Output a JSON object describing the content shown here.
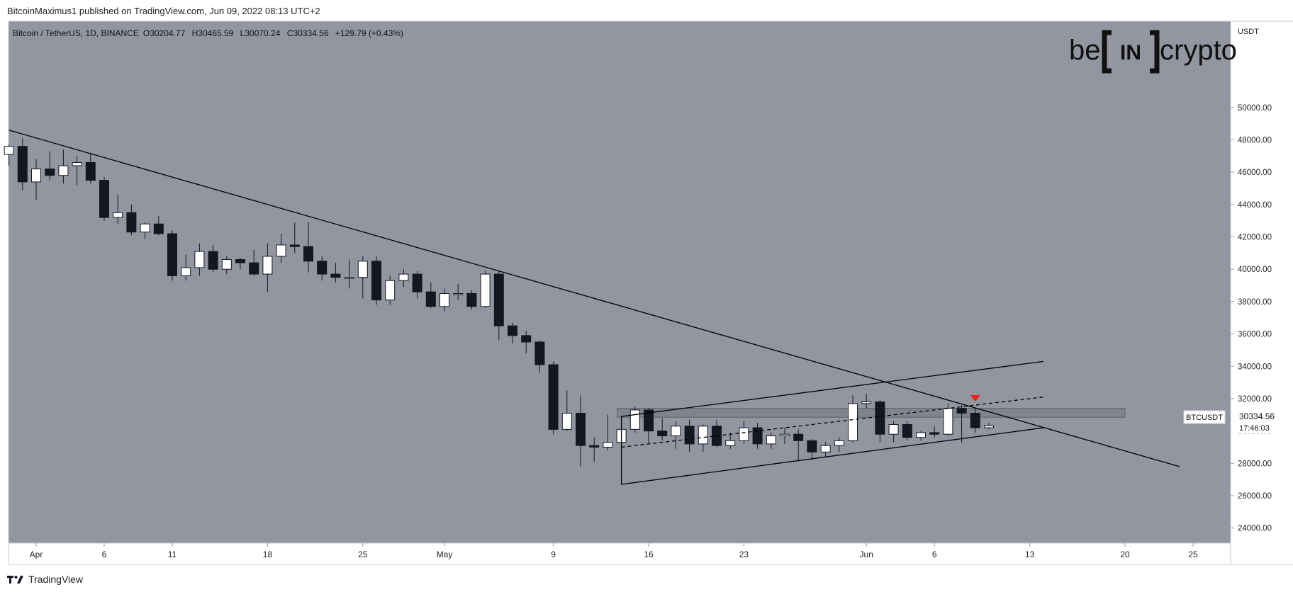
{
  "header": {
    "published_line": "BitcoinMaximus1 published on TradingView.com, Jun 09, 2022 08:13 UTC+2",
    "symbol_line": "Bitcoin / TetherUS, 1D, BINANCE",
    "ohlc": [
      {
        "key": "O",
        "value": "30204.77"
      },
      {
        "key": "H",
        "value": "30465.59"
      },
      {
        "key": "L",
        "value": "30070.24"
      },
      {
        "key": "C",
        "value": "30334.56"
      }
    ],
    "change": "+129.79 (+0.43%)"
  },
  "watermark": {
    "left": "be",
    "middle": "IN",
    "right": "crypto"
  },
  "price_tag": {
    "symbol": "BTCUSDT",
    "price": "30334.56",
    "countdown": "17:46:03"
  },
  "footer": {
    "brand": "TradingView"
  },
  "colors": {
    "plot_bg": "#9396a0",
    "bull": "#ffffff",
    "bear": "#131722",
    "line": "#000000",
    "zone": "#7e818b",
    "marker": "#e8231a"
  },
  "chart_data": {
    "type": "candlestick",
    "title": "",
    "xlabel": "",
    "ylabel": "USDT",
    "ylim": [
      23000,
      51500
    ],
    "x_range_day": [
      -2.8,
      84.8
    ],
    "grid": false,
    "x_ticks": [
      {
        "day": 0,
        "label": "Apr"
      },
      {
        "day": 5,
        "label": "6"
      },
      {
        "day": 10,
        "label": "11"
      },
      {
        "day": 17,
        "label": "18"
      },
      {
        "day": 24,
        "label": "25"
      },
      {
        "day": 30,
        "label": "May"
      },
      {
        "day": 38,
        "label": "9"
      },
      {
        "day": 45,
        "label": "16"
      },
      {
        "day": 52,
        "label": "23"
      },
      {
        "day": 61,
        "label": "Jun"
      },
      {
        "day": 66,
        "label": "6"
      },
      {
        "day": 73,
        "label": "13"
      },
      {
        "day": 80,
        "label": "20"
      },
      {
        "day": 85,
        "label": "25"
      }
    ],
    "y_ticks": [
      {
        "value": 24000,
        "label": "24000.00"
      },
      {
        "value": 26000,
        "label": "26000.00"
      },
      {
        "value": 28000,
        "label": "28000.00"
      },
      {
        "value": 30000,
        "label": "30000.00"
      },
      {
        "value": 32000,
        "label": "32000.00"
      },
      {
        "value": 34000,
        "label": "34000.00"
      },
      {
        "value": 36000,
        "label": "36000.00"
      },
      {
        "value": 38000,
        "label": "38000.00"
      },
      {
        "value": 40000,
        "label": "40000.00"
      },
      {
        "value": 42000,
        "label": "42000.00"
      },
      {
        "value": 44000,
        "label": "44000.00"
      },
      {
        "value": 46000,
        "label": "46000.00"
      },
      {
        "value": 48000,
        "label": "48000.00"
      },
      {
        "value": 50000,
        "label": "50000.00"
      }
    ],
    "candles": [
      {
        "day": -2,
        "o": 47100,
        "h": 47700,
        "l": 46400,
        "c": 47600
      },
      {
        "day": -1,
        "o": 47600,
        "h": 48100,
        "l": 44900,
        "c": 45400
      },
      {
        "day": 0,
        "o": 45400,
        "h": 46800,
        "l": 44300,
        "c": 46200
      },
      {
        "day": 1,
        "o": 46200,
        "h": 47300,
        "l": 45500,
        "c": 45800
      },
      {
        "day": 2,
        "o": 45800,
        "h": 47400,
        "l": 45300,
        "c": 46400
      },
      {
        "day": 3,
        "o": 46400,
        "h": 47000,
        "l": 45200,
        "c": 46600
      },
      {
        "day": 4,
        "o": 46600,
        "h": 47200,
        "l": 45300,
        "c": 45500
      },
      {
        "day": 5,
        "o": 45500,
        "h": 45700,
        "l": 43000,
        "c": 43200
      },
      {
        "day": 6,
        "o": 43200,
        "h": 44600,
        "l": 42800,
        "c": 43500
      },
      {
        "day": 7,
        "o": 43500,
        "h": 44000,
        "l": 42100,
        "c": 42300
      },
      {
        "day": 8,
        "o": 42300,
        "h": 42900,
        "l": 41900,
        "c": 42800
      },
      {
        "day": 9,
        "o": 42800,
        "h": 43300,
        "l": 42100,
        "c": 42200
      },
      {
        "day": 10,
        "o": 42200,
        "h": 42400,
        "l": 39300,
        "c": 39600
      },
      {
        "day": 11,
        "o": 39600,
        "h": 40900,
        "l": 39300,
        "c": 40100
      },
      {
        "day": 12,
        "o": 40100,
        "h": 41600,
        "l": 39600,
        "c": 41100
      },
      {
        "day": 13,
        "o": 41100,
        "h": 41500,
        "l": 39800,
        "c": 40000
      },
      {
        "day": 14,
        "o": 40000,
        "h": 40800,
        "l": 39700,
        "c": 40600
      },
      {
        "day": 15,
        "o": 40600,
        "h": 40700,
        "l": 40000,
        "c": 40400
      },
      {
        "day": 16,
        "o": 40400,
        "h": 41200,
        "l": 39600,
        "c": 39700
      },
      {
        "day": 17,
        "o": 39700,
        "h": 41600,
        "l": 38600,
        "c": 40800
      },
      {
        "day": 18,
        "o": 40800,
        "h": 42200,
        "l": 40400,
        "c": 41500
      },
      {
        "day": 19,
        "o": 41500,
        "h": 42900,
        "l": 41000,
        "c": 41400
      },
      {
        "day": 20,
        "o": 41400,
        "h": 42900,
        "l": 39800,
        "c": 40500
      },
      {
        "day": 21,
        "o": 40500,
        "h": 40800,
        "l": 39300,
        "c": 39700
      },
      {
        "day": 22,
        "o": 39700,
        "h": 40400,
        "l": 39200,
        "c": 39500
      },
      {
        "day": 23,
        "o": 39500,
        "h": 40600,
        "l": 38800,
        "c": 39500
      },
      {
        "day": 24,
        "o": 39500,
        "h": 40800,
        "l": 38200,
        "c": 40500
      },
      {
        "day": 25,
        "o": 40500,
        "h": 40800,
        "l": 37800,
        "c": 38100
      },
      {
        "day": 26,
        "o": 38100,
        "h": 39600,
        "l": 37800,
        "c": 39300
      },
      {
        "day": 27,
        "o": 39300,
        "h": 40000,
        "l": 38900,
        "c": 39700
      },
      {
        "day": 28,
        "o": 39700,
        "h": 39900,
        "l": 38200,
        "c": 38600
      },
      {
        "day": 29,
        "o": 38600,
        "h": 39200,
        "l": 37600,
        "c": 37700
      },
      {
        "day": 30,
        "o": 37700,
        "h": 38800,
        "l": 37400,
        "c": 38500
      },
      {
        "day": 31,
        "o": 38500,
        "h": 39100,
        "l": 38100,
        "c": 38500
      },
      {
        "day": 32,
        "o": 38500,
        "h": 38700,
        "l": 37500,
        "c": 37700
      },
      {
        "day": 33,
        "o": 37700,
        "h": 39900,
        "l": 37600,
        "c": 39700
      },
      {
        "day": 34,
        "o": 39700,
        "h": 39900,
        "l": 35600,
        "c": 36500
      },
      {
        "day": 35,
        "o": 36500,
        "h": 36700,
        "l": 35400,
        "c": 35900
      },
      {
        "day": 36,
        "o": 35900,
        "h": 36200,
        "l": 34800,
        "c": 35500
      },
      {
        "day": 37,
        "o": 35500,
        "h": 35600,
        "l": 33600,
        "c": 34100
      },
      {
        "day": 38,
        "o": 34100,
        "h": 34300,
        "l": 29800,
        "c": 30100
      },
      {
        "day": 39,
        "o": 30100,
        "h": 32500,
        "l": 30000,
        "c": 31100
      },
      {
        "day": 40,
        "o": 31100,
        "h": 32200,
        "l": 27800,
        "c": 29100
      },
      {
        "day": 41,
        "o": 29100,
        "h": 29600,
        "l": 28100,
        "c": 29000
      },
      {
        "day": 42,
        "o": 29000,
        "h": 31000,
        "l": 28800,
        "c": 29300
      },
      {
        "day": 43,
        "o": 29300,
        "h": 30900,
        "l": 28900,
        "c": 30100
      },
      {
        "day": 44,
        "o": 30100,
        "h": 31500,
        "l": 29900,
        "c": 31300
      },
      {
        "day": 45,
        "o": 31300,
        "h": 31400,
        "l": 29200,
        "c": 30000
      },
      {
        "day": 46,
        "o": 30000,
        "h": 30800,
        "l": 29400,
        "c": 29700
      },
      {
        "day": 47,
        "o": 29700,
        "h": 30600,
        "l": 28900,
        "c": 30300
      },
      {
        "day": 48,
        "o": 30300,
        "h": 30700,
        "l": 28700,
        "c": 29200
      },
      {
        "day": 49,
        "o": 29200,
        "h": 30400,
        "l": 28700,
        "c": 30300
      },
      {
        "day": 50,
        "o": 30300,
        "h": 30700,
        "l": 29000,
        "c": 29100
      },
      {
        "day": 51,
        "o": 29100,
        "h": 29900,
        "l": 28900,
        "c": 29400
      },
      {
        "day": 52,
        "o": 29400,
        "h": 30600,
        "l": 29200,
        "c": 30200
      },
      {
        "day": 53,
        "o": 30200,
        "h": 30500,
        "l": 28900,
        "c": 29200
      },
      {
        "day": 54,
        "o": 29200,
        "h": 29900,
        "l": 28900,
        "c": 29700
      },
      {
        "day": 55,
        "o": 29700,
        "h": 30200,
        "l": 29200,
        "c": 29800
      },
      {
        "day": 56,
        "o": 29800,
        "h": 30100,
        "l": 28100,
        "c": 29400
      },
      {
        "day": 57,
        "o": 29400,
        "h": 29500,
        "l": 28200,
        "c": 28700
      },
      {
        "day": 58,
        "o": 28700,
        "h": 29300,
        "l": 28400,
        "c": 29100
      },
      {
        "day": 59,
        "o": 29100,
        "h": 29600,
        "l": 28700,
        "c": 29400
      },
      {
        "day": 60,
        "o": 29400,
        "h": 32200,
        "l": 29300,
        "c": 31700
      },
      {
        "day": 61,
        "o": 31700,
        "h": 32300,
        "l": 31400,
        "c": 31800
      },
      {
        "day": 62,
        "o": 31800,
        "h": 31900,
        "l": 29300,
        "c": 29800
      },
      {
        "day": 63,
        "o": 29800,
        "h": 30600,
        "l": 29300,
        "c": 30400
      },
      {
        "day": 64,
        "o": 30400,
        "h": 30600,
        "l": 29400,
        "c": 29600
      },
      {
        "day": 65,
        "o": 29600,
        "h": 30000,
        "l": 29400,
        "c": 29900
      },
      {
        "day": 66,
        "o": 29900,
        "h": 30300,
        "l": 29600,
        "c": 29800
      },
      {
        "day": 67,
        "o": 29800,
        "h": 31700,
        "l": 29700,
        "c": 31400
      },
      {
        "day": 68,
        "o": 31400,
        "h": 31600,
        "l": 29300,
        "c": 31100
      },
      {
        "day": 69,
        "o": 31100,
        "h": 31400,
        "l": 29900,
        "c": 30200
      },
      {
        "day": 70,
        "o": 30200,
        "h": 30500,
        "l": 30100,
        "c": 30330
      }
    ],
    "annotations": {
      "descending_resistance": {
        "from": {
          "day": -2,
          "value": 48600
        },
        "to": {
          "day": 84,
          "value": 27800
        }
      },
      "channel_upper": {
        "from": {
          "day": 43,
          "value": 30900
        },
        "to": {
          "day": 74,
          "value": 34300
        }
      },
      "channel_lower": {
        "from": {
          "day": 43,
          "value": 26700
        },
        "to": {
          "day": 74,
          "value": 30200
        }
      },
      "channel_left_edge": {
        "from": {
          "day": 43,
          "value": 26700
        },
        "to": {
          "day": 43,
          "value": 30900
        }
      },
      "channel_midline_dashed": {
        "from": {
          "day": 43,
          "value": 29000
        },
        "to": {
          "day": 74,
          "value": 32100
        }
      },
      "resistance_zone": {
        "from_day": 43,
        "to_day": 80,
        "low": 30850,
        "high": 31400
      },
      "rejection_marker": {
        "day": 69,
        "value": 32000
      }
    }
  }
}
